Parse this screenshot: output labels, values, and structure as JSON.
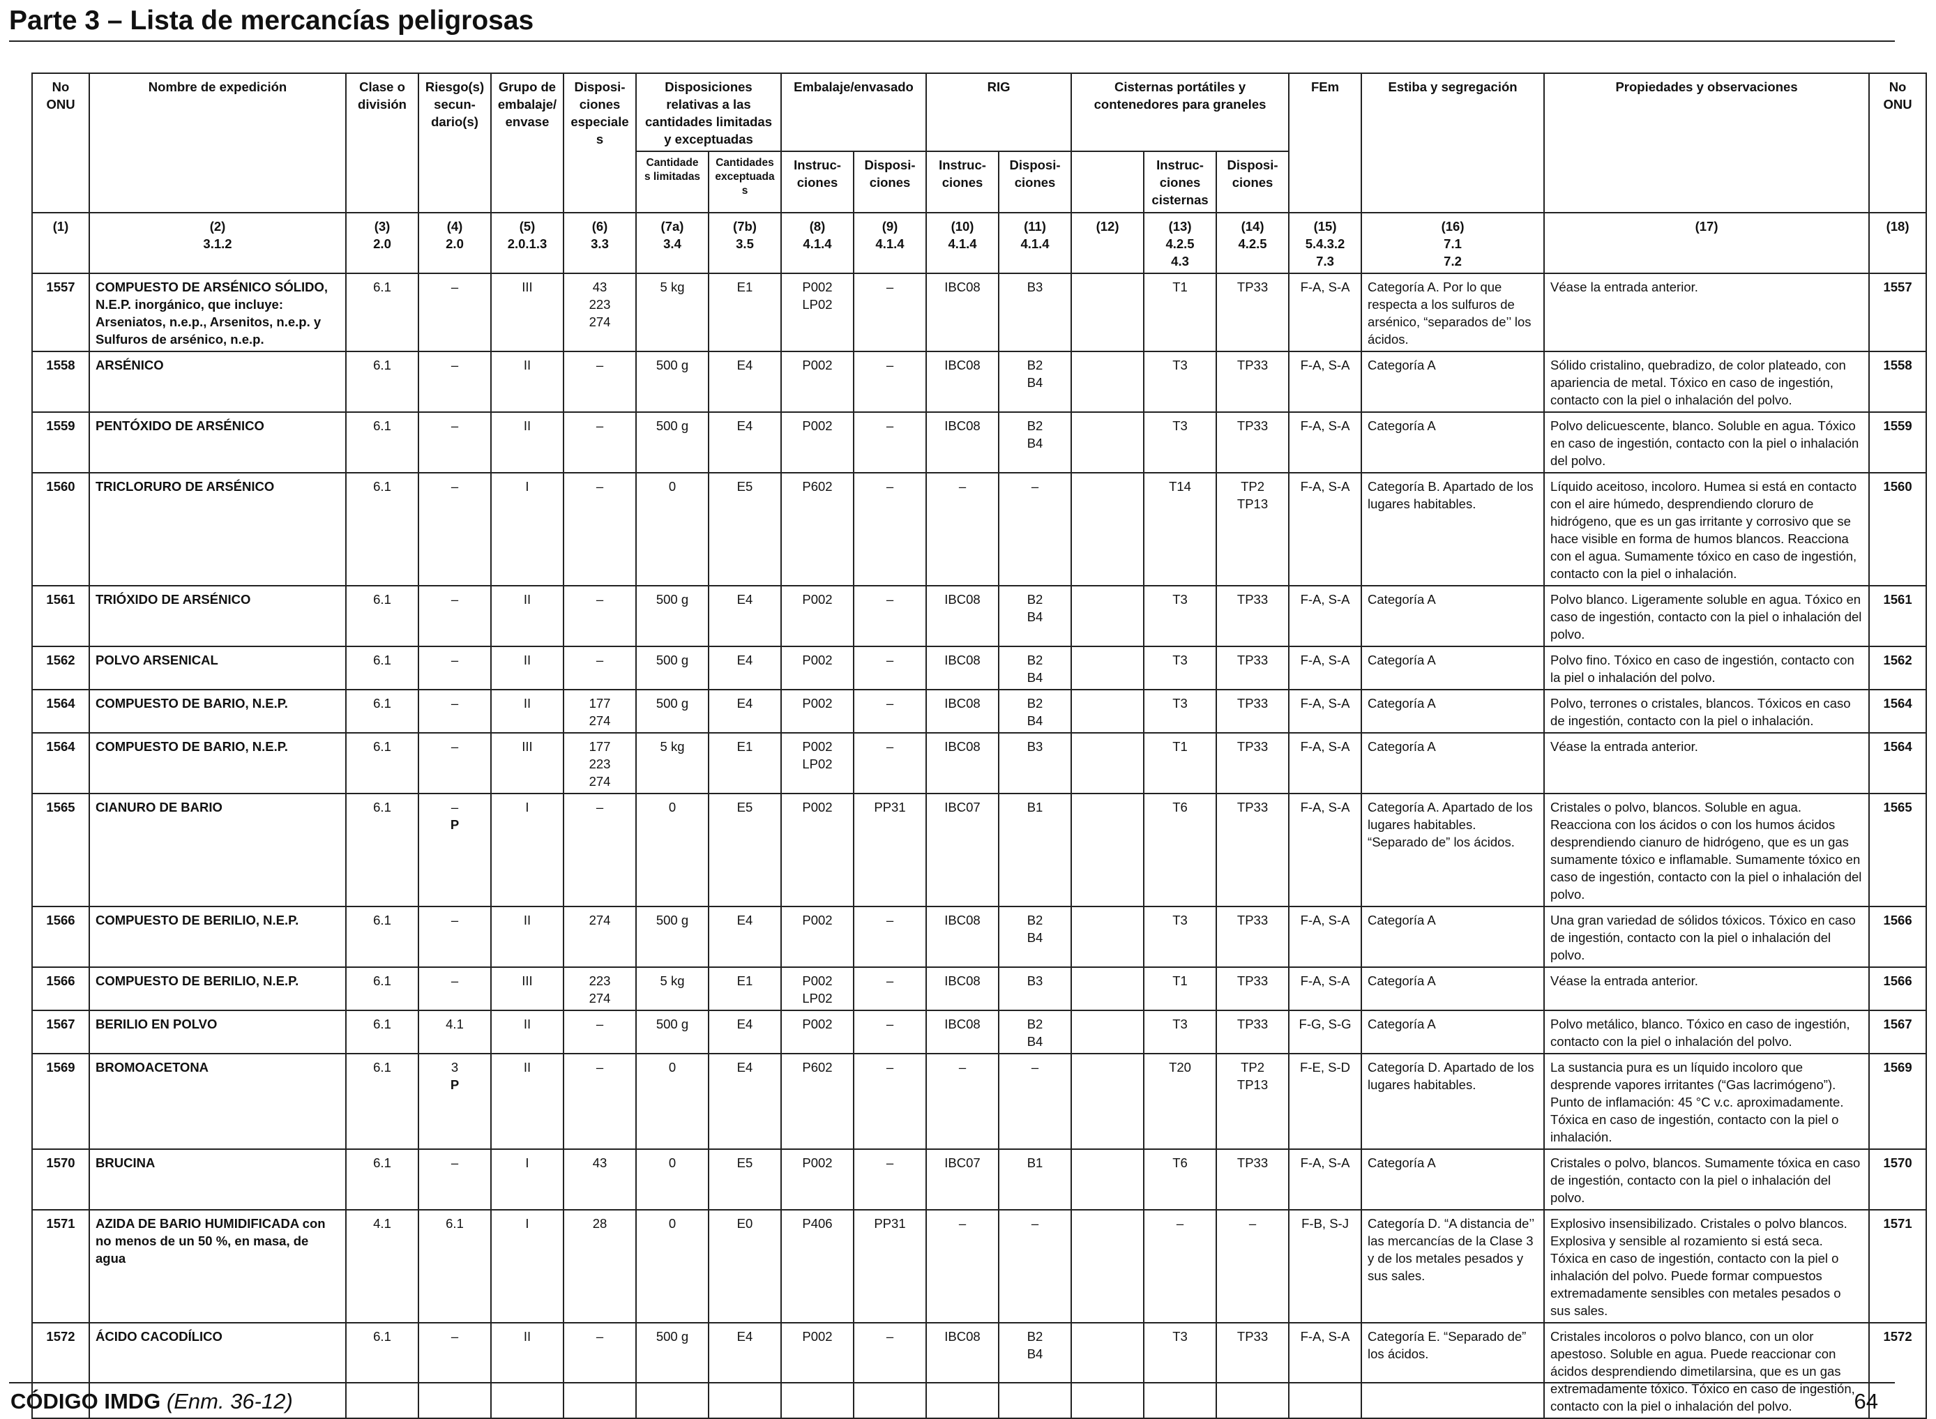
{
  "page": {
    "title": "Parte 3 – Lista de mercancías peligrosas"
  },
  "table": {
    "headers": {
      "no_onu": "No ONU",
      "nombre": "Nombre de expedición",
      "clase": "Clase o división",
      "riesgos": "Riesgo(s) secun-dario(s)",
      "grupo": "Grupo de embalaje/ envase",
      "disposiciones": "Disposi-ciones especiales",
      "cantidades_group": "Disposiciones relativas a las cantidades limitadas y exceptuadas",
      "cant_limitadas": "Cantidade s limitadas",
      "cant_exceptuadas": "Cantidades exceptuadas",
      "embalaje_group": "Embalaje/envasado",
      "emb_instr": "Instruc-ciones",
      "emb_disp": "Disposi-ciones",
      "rig_group": "RIG",
      "rig_instr": "Instruc-ciones",
      "rig_disp": "Disposi-ciones",
      "cisternas_group": "Cisternas portátiles y contenedores para graneles",
      "cist_instr": "Instruc-ciones cisternas",
      "cist_disp": "Disposi-ciones",
      "fem": "FEm",
      "estiba": "Estiba y segregación",
      "propiedades": "Propiedades y observaciones",
      "no_onu_right": "No ONU"
    },
    "column_numbers": [
      [
        "(1)"
      ],
      [
        "(2)",
        "3.1.2"
      ],
      [
        "(3)",
        "2.0"
      ],
      [
        "(4)",
        "2.0"
      ],
      [
        "(5)",
        "2.0.1.3"
      ],
      [
        "(6)",
        "3.3"
      ],
      [
        "(7a)",
        "3.4"
      ],
      [
        "(7b)",
        "3.5"
      ],
      [
        "(8)",
        "4.1.4"
      ],
      [
        "(9)",
        "4.1.4"
      ],
      [
        "(10)",
        "4.1.4"
      ],
      [
        "(11)",
        "4.1.4"
      ],
      [
        "(12)"
      ],
      [
        "(13)",
        "4.2.5",
        "4.3"
      ],
      [
        "(14)",
        "4.2.5"
      ],
      [
        "(15)",
        "5.4.3.2",
        "7.3"
      ],
      [
        "(16)",
        "7.1",
        "7.2"
      ],
      [
        "(17)"
      ],
      [
        "(18)"
      ]
    ],
    "rows": [
      {
        "onu": "1557",
        "nombre": "COMPUESTO DE ARSÉNICO SÓLIDO, N.E.P. inorgánico, que incluye: Arseniatos, n.e.p., Arsenitos, n.e.p. y Sulfuros de arsénico, n.e.p.",
        "clase": "6.1",
        "riesgo": [
          "–"
        ],
        "grupo": "III",
        "disp": [
          "43",
          "223",
          "274"
        ],
        "cl": "5 kg",
        "ce": "E1",
        "emb_i": [
          "P002",
          "LP02"
        ],
        "emb_d": "–",
        "rig_i": "IBC08",
        "rig_d": [
          "B3"
        ],
        "c12": "",
        "cist_i": "T1",
        "cist_d": [
          "TP33"
        ],
        "fem": "F-A, S-A",
        "estiba": "Categoría A. Por lo que respecta a los sulfuros de arsénico, “separados de’’ los ácidos.",
        "prop": "Véase la entrada anterior.",
        "onu_r": "1557"
      },
      {
        "onu": "1558",
        "nombre": "ARSÉNICO",
        "clase": "6.1",
        "riesgo": [
          "–"
        ],
        "grupo": "II",
        "disp": [
          "–"
        ],
        "cl": "500 g",
        "ce": "E4",
        "emb_i": [
          "P002"
        ],
        "emb_d": "–",
        "rig_i": "IBC08",
        "rig_d": [
          "B2",
          "B4"
        ],
        "c12": "",
        "cist_i": "T3",
        "cist_d": [
          "TP33"
        ],
        "fem": "F-A, S-A",
        "estiba": "Categoría A",
        "prop": "Sólido cristalino, quebradizo, de color plateado, con apariencia de metal. Tóxico en caso de ingestión, contacto con la piel o inhalación del polvo.",
        "onu_r": "1558"
      },
      {
        "onu": "1559",
        "nombre": "PENTÓXIDO DE ARSÉNICO",
        "clase": "6.1",
        "riesgo": [
          "–"
        ],
        "grupo": "II",
        "disp": [
          "–"
        ],
        "cl": "500 g",
        "ce": "E4",
        "emb_i": [
          "P002"
        ],
        "emb_d": "–",
        "rig_i": "IBC08",
        "rig_d": [
          "B2",
          "B4"
        ],
        "c12": "",
        "cist_i": "T3",
        "cist_d": [
          "TP33"
        ],
        "fem": "F-A, S-A",
        "estiba": "Categoría A",
        "prop": "Polvo delicuescente, blanco. Soluble en agua. Tóxico en caso de ingestión, contacto con la piel o inhalación del polvo.",
        "onu_r": "1559"
      },
      {
        "onu": "1560",
        "nombre": "TRICLORURO DE ARSÉNICO",
        "clase": "6.1",
        "riesgo": [
          "–"
        ],
        "grupo": "I",
        "disp": [
          "–"
        ],
        "cl": "0",
        "ce": "E5",
        "emb_i": [
          "P602"
        ],
        "emb_d": "–",
        "rig_i": "–",
        "rig_d": [
          "–"
        ],
        "c12": "",
        "cist_i": "T14",
        "cist_d": [
          "TP2",
          "TP13"
        ],
        "fem": "F-A, S-A",
        "estiba": "Categoría B. Apartado de los lugares habitables.",
        "prop": "Líquido aceitoso, incoloro. Humea si está en contacto con el aire húmedo, desprendiendo cloruro de hidrógeno, que es un gas irritante y corrosivo que se hace visible en forma de humos blancos. Reacciona con el agua. Sumamente tóxico en caso de ingestión, contacto con la piel o inhalación.",
        "onu_r": "1560"
      },
      {
        "onu": "1561",
        "nombre": "TRIÓXIDO DE ARSÉNICO",
        "clase": "6.1",
        "riesgo": [
          "–"
        ],
        "grupo": "II",
        "disp": [
          "–"
        ],
        "cl": "500 g",
        "ce": "E4",
        "emb_i": [
          "P002"
        ],
        "emb_d": "–",
        "rig_i": "IBC08",
        "rig_d": [
          "B2",
          "B4"
        ],
        "c12": "",
        "cist_i": "T3",
        "cist_d": [
          "TP33"
        ],
        "fem": "F-A, S-A",
        "estiba": "Categoría A",
        "prop": "Polvo blanco. Ligeramente soluble en agua. Tóxico en caso de ingestión, contacto con la piel o inhalación del polvo.",
        "onu_r": "1561"
      },
      {
        "onu": "1562",
        "nombre": "POLVO ARSENICAL",
        "clase": "6.1",
        "riesgo": [
          "–"
        ],
        "grupo": "II",
        "disp": [
          "–"
        ],
        "cl": "500 g",
        "ce": "E4",
        "emb_i": [
          "P002"
        ],
        "emb_d": "–",
        "rig_i": "IBC08",
        "rig_d": [
          "B2",
          "B4"
        ],
        "c12": "",
        "cist_i": "T3",
        "cist_d": [
          "TP33"
        ],
        "fem": "F-A, S-A",
        "estiba": "Categoría A",
        "prop": "Polvo fino. Tóxico en caso de ingestión, contacto con la piel o inhalación del polvo.",
        "onu_r": "1562"
      },
      {
        "onu": "1564",
        "nombre": "COMPUESTO DE BARIO, N.E.P.",
        "clase": "6.1",
        "riesgo": [
          "–"
        ],
        "grupo": "II",
        "disp": [
          "177",
          "274"
        ],
        "cl": "500 g",
        "ce": "E4",
        "emb_i": [
          "P002"
        ],
        "emb_d": "–",
        "rig_i": "IBC08",
        "rig_d": [
          "B2",
          "B4"
        ],
        "c12": "",
        "cist_i": "T3",
        "cist_d": [
          "TP33"
        ],
        "fem": "F-A, S-A",
        "estiba": "Categoría A",
        "prop": "Polvo, terrones o cristales, blancos. Tóxicos en caso de ingestión, contacto con la piel o inhalación.",
        "onu_r": "1564"
      },
      {
        "onu": "1564",
        "nombre": "COMPUESTO DE BARIO, N.E.P.",
        "clase": "6.1",
        "riesgo": [
          "–"
        ],
        "grupo": "III",
        "disp": [
          "177",
          "223",
          "274"
        ],
        "cl": "5 kg",
        "ce": "E1",
        "emb_i": [
          "P002",
          "LP02"
        ],
        "emb_d": "–",
        "rig_i": "IBC08",
        "rig_d": [
          "B3"
        ],
        "c12": "",
        "cist_i": "T1",
        "cist_d": [
          "TP33"
        ],
        "fem": "F-A, S-A",
        "estiba": "Categoría A",
        "prop": "Véase la entrada anterior.",
        "onu_r": "1564"
      },
      {
        "onu": "1565",
        "nombre": "CIANURO DE BARIO",
        "clase": "6.1",
        "riesgo": [
          "–",
          "P"
        ],
        "grupo": "I",
        "disp": [
          "–"
        ],
        "cl": "0",
        "ce": "E5",
        "emb_i": [
          "P002"
        ],
        "emb_d": "PP31",
        "rig_i": "IBC07",
        "rig_d": [
          "B1"
        ],
        "c12": "",
        "cist_i": "T6",
        "cist_d": [
          "TP33"
        ],
        "fem": "F-A, S-A",
        "estiba": "Categoría A. Apartado de los lugares habitables. “Separado de” los ácidos.",
        "prop": "Cristales o polvo, blancos. Soluble en agua. Reacciona con los ácidos o con los humos ácidos desprendiendo cianuro de hidrógeno, que es un gas sumamente tóxico e inflamable. Sumamente tóxico en caso de ingestión, contacto con la piel o inhalación del polvo.",
        "onu_r": "1565"
      },
      {
        "onu": "1566",
        "nombre": "COMPUESTO DE BERILIO, N.E.P.",
        "clase": "6.1",
        "riesgo": [
          "–"
        ],
        "grupo": "II",
        "disp": [
          "274"
        ],
        "cl": "500 g",
        "ce": "E4",
        "emb_i": [
          "P002"
        ],
        "emb_d": "–",
        "rig_i": "IBC08",
        "rig_d": [
          "B2",
          "B4"
        ],
        "c12": "",
        "cist_i": "T3",
        "cist_d": [
          "TP33"
        ],
        "fem": "F-A, S-A",
        "estiba": "Categoría A",
        "prop": "Una gran variedad de sólidos tóxicos. Tóxico en caso de ingestión, contacto con la piel o inhalación del polvo.",
        "onu_r": "1566"
      },
      {
        "onu": "1566",
        "nombre": "COMPUESTO DE BERILIO, N.E.P.",
        "clase": "6.1",
        "riesgo": [
          "–"
        ],
        "grupo": "III",
        "disp": [
          "223",
          "274"
        ],
        "cl": "5 kg",
        "ce": "E1",
        "emb_i": [
          "P002",
          "LP02"
        ],
        "emb_d": "–",
        "rig_i": "IBC08",
        "rig_d": [
          "B3"
        ],
        "c12": "",
        "cist_i": "T1",
        "cist_d": [
          "TP33"
        ],
        "fem": "F-A, S-A",
        "estiba": "Categoría A",
        "prop": "Véase la entrada anterior.",
        "onu_r": "1566"
      },
      {
        "onu": "1567",
        "nombre": "BERILIO EN POLVO",
        "clase": "6.1",
        "riesgo": [
          "4.1"
        ],
        "grupo": "II",
        "disp": [
          "–"
        ],
        "cl": "500 g",
        "ce": "E4",
        "emb_i": [
          "P002"
        ],
        "emb_d": "–",
        "rig_i": "IBC08",
        "rig_d": [
          "B2",
          "B4"
        ],
        "c12": "",
        "cist_i": "T3",
        "cist_d": [
          "TP33"
        ],
        "fem": "F-G, S-G",
        "estiba": "Categoría A",
        "prop": "Polvo metálico, blanco. Tóxico en caso de ingestión, contacto con la piel o inhalación del polvo.",
        "onu_r": "1567"
      },
      {
        "onu": "1569",
        "nombre": "BROMOACETONA",
        "clase": "6.1",
        "riesgo": [
          "3",
          "P"
        ],
        "grupo": "II",
        "disp": [
          "–"
        ],
        "cl": "0",
        "ce": "E4",
        "emb_i": [
          "P602"
        ],
        "emb_d": "–",
        "rig_i": "–",
        "rig_d": [
          "–"
        ],
        "c12": "",
        "cist_i": "T20",
        "cist_d": [
          "TP2",
          "TP13"
        ],
        "fem": "F-E, S-D",
        "estiba": "Categoría D. Apartado de los lugares habitables.",
        "prop": "La sustancia pura es un líquido incoloro que desprende vapores irritantes (“Gas lacrimógeno”). Punto de inflamación: 45 °C v.c. aproximadamente. Tóxica en caso de ingestión, contacto con la piel o inhalación.",
        "onu_r": "1569"
      },
      {
        "onu": "1570",
        "nombre": "BRUCINA",
        "clase": "6.1",
        "riesgo": [
          "–"
        ],
        "grupo": "I",
        "disp": [
          "43"
        ],
        "cl": "0",
        "ce": "E5",
        "emb_i": [
          "P002"
        ],
        "emb_d": "–",
        "rig_i": "IBC07",
        "rig_d": [
          "B1"
        ],
        "c12": "",
        "cist_i": "T6",
        "cist_d": [
          "TP33"
        ],
        "fem": "F-A, S-A",
        "estiba": "Categoría A",
        "prop": "Cristales o polvo, blancos. Sumamente tóxica en caso de ingestión, contacto con la piel o inhalación del polvo.",
        "onu_r": "1570"
      },
      {
        "onu": "1571",
        "nombre": "AZIDA DE BARIO HUMIDIFICADA con no menos de un 50 %, en masa, de agua",
        "clase": "4.1",
        "riesgo": [
          "6.1"
        ],
        "grupo": "I",
        "disp": [
          "28"
        ],
        "cl": "0",
        "ce": "E0",
        "emb_i": [
          "P406"
        ],
        "emb_d": "PP31",
        "rig_i": "–",
        "rig_d": [
          "–"
        ],
        "c12": "",
        "cist_i": "–",
        "cist_d": [
          "–"
        ],
        "fem": "F-B, S-J",
        "estiba": "Categoría D. “A distancia de’’ las mercancías de la Clase 3 y de los metales pesados y sus sales.",
        "prop": "Explosivo insensibilizado. Cristales o polvo blancos. Explosiva y sensible al rozamiento si está seca. Tóxica en caso de ingestión, contacto con la piel o inhalación del polvo. Puede formar compuestos extremadamente sensibles con metales pesados o sus sales.",
        "onu_r": "1571"
      },
      {
        "onu": "1572",
        "nombre": "ÁCIDO CACODÍLICO",
        "clase": "6.1",
        "riesgo": [
          "–"
        ],
        "grupo": "II",
        "disp": [
          "–"
        ],
        "cl": "500 g",
        "ce": "E4",
        "emb_i": [
          "P002"
        ],
        "emb_d": "–",
        "rig_i": "IBC08",
        "rig_d": [
          "B2",
          "B4"
        ],
        "c12": "",
        "cist_i": "T3",
        "cist_d": [
          "TP33"
        ],
        "fem": "F-A, S-A",
        "estiba": "Categoría E. “Separado de” los ácidos.",
        "prop": "Cristales incoloros o polvo blanco, con un olor apestoso. Soluble en agua. Puede reaccionar con ácidos desprendiendo dimetilarsina, que es un gas extremadamente tóxico. Tóxico en caso de ingestión, contacto con la piel o inhalación del polvo.",
        "onu_r": "1572"
      }
    ]
  },
  "footer": {
    "code": "CÓDIGO IMDG",
    "edition": "(Enm. 36-12)",
    "page_number": "64"
  }
}
